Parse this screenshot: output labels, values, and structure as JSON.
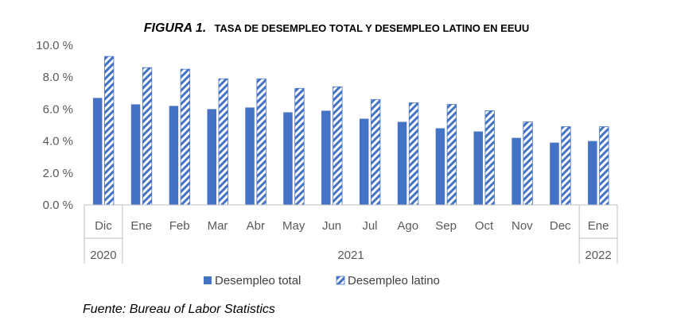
{
  "chart_data": {
    "type": "bar",
    "title_prefix": "FIGURA 1.",
    "title_main": "TASA DE DESEMPLEO TOTAL Y DESEMPLEO LATINO EN EEUU",
    "categories": [
      "Dic",
      "Ene",
      "Feb",
      "Mar",
      "Abr",
      "May",
      "Jun",
      "Jul",
      "Ago",
      "Sep",
      "Oct",
      "Nov",
      "Dec",
      "Ene"
    ],
    "year_groups": [
      {
        "label": "2020",
        "from": 0,
        "to": 0
      },
      {
        "label": "2021",
        "from": 1,
        "to": 12
      },
      {
        "label": "2022",
        "from": 13,
        "to": 13
      }
    ],
    "series": [
      {
        "name": "Desempleo total",
        "values": [
          6.7,
          6.3,
          6.2,
          6.0,
          6.1,
          5.8,
          5.9,
          5.4,
          5.2,
          4.8,
          4.6,
          4.2,
          3.9,
          4.0
        ]
      },
      {
        "name": "Desempleo latino",
        "values": [
          9.3,
          8.6,
          8.5,
          7.9,
          7.9,
          7.3,
          7.4,
          6.6,
          6.4,
          6.3,
          5.9,
          5.2,
          4.9,
          4.9
        ]
      }
    ],
    "ylim": [
      0,
      10
    ],
    "yticks": [
      "0.0 %",
      "2.0 %",
      "4.0 %",
      "6.0 %",
      "8.0 %",
      "10.0 %"
    ],
    "ytick_values": [
      0,
      2,
      4,
      6,
      8,
      10
    ],
    "legend_position": "bottom",
    "colors": {
      "total": "#4472C4",
      "latino_stripe": "#4472C4",
      "latino_bg": "#ffffff",
      "axis": "#bfbfbf"
    }
  },
  "source": "Fuente: Bureau of Labor Statistics"
}
